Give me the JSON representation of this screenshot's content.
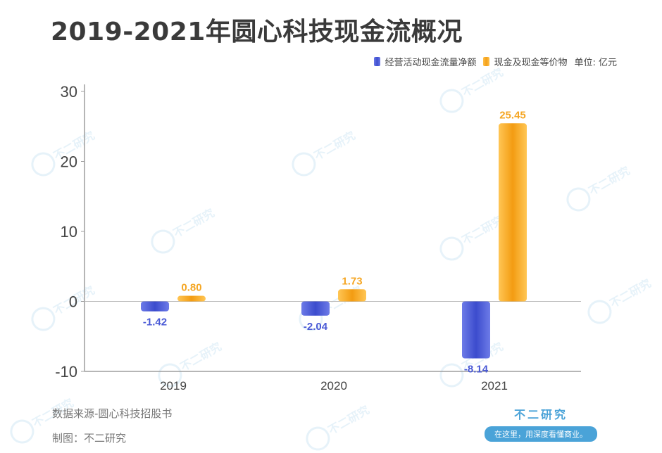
{
  "title": "2019-2021年圆心科技现金流概况",
  "legend": {
    "series1": "经营活动现金流量净额",
    "series2": "现金及现金等价物",
    "unit": "单位: 亿元"
  },
  "footer": {
    "source": "数据来源-圆心科技招股书",
    "maker": "制图：不二研究"
  },
  "brand": {
    "name": "不二研究",
    "slogan": "在这里，用深度看懂商业。"
  },
  "watermark": "不二研究",
  "colors": {
    "blue": "#4a5ad6",
    "orange": "#f5a623",
    "axis": "#9e9e9e"
  },
  "chart_data": {
    "type": "bar",
    "categories": [
      "2019",
      "2020",
      "2021"
    ],
    "series": [
      {
        "name": "经营活动现金流量净额",
        "values": [
          -1.42,
          -2.04,
          -8.14
        ],
        "labels": [
          "-1.42",
          "-2.04",
          "-8.14"
        ]
      },
      {
        "name": "现金及现金等价物",
        "values": [
          0.8,
          1.73,
          25.45
        ],
        "labels": [
          "0.80",
          "1.73",
          "25.45"
        ]
      }
    ],
    "yticks": [
      30,
      20,
      10,
      0,
      -10
    ],
    "ylim": [
      -10,
      30
    ],
    "legend_position": "top-right",
    "grid": false
  }
}
